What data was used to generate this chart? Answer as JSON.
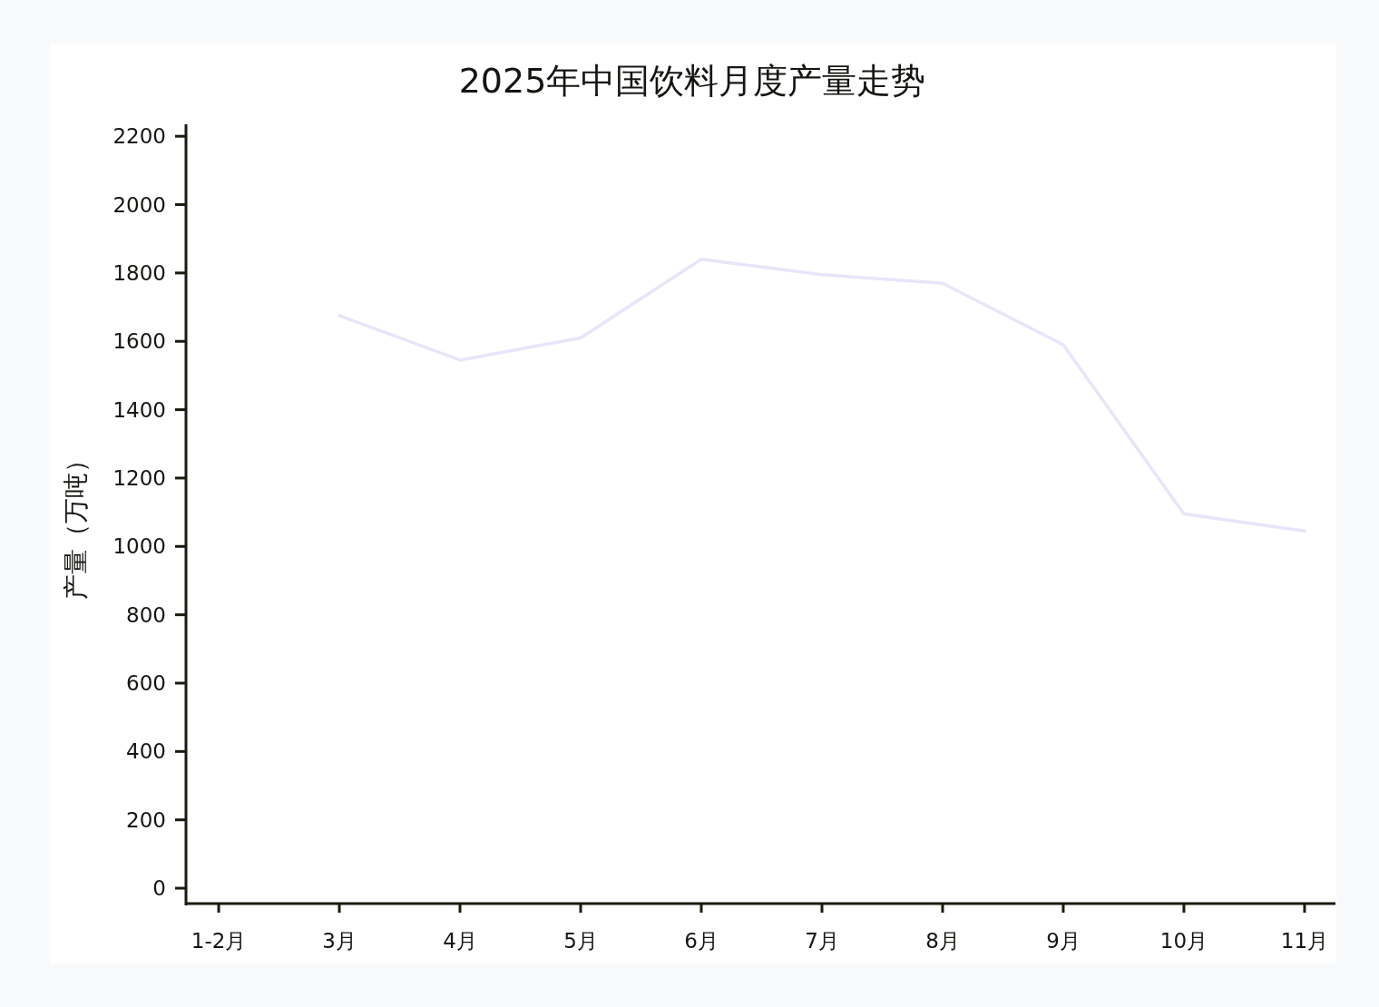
{
  "chart_data": {
    "type": "line",
    "title": "2025年中国饮料月度产量走势",
    "ylabel": "产量（万吨）",
    "categories": [
      "1-2月",
      "3月",
      "4月",
      "5月",
      "6月",
      "7月",
      "8月",
      "9月",
      "10月",
      "11月"
    ],
    "series": [
      {
        "color": "#e6e6fa",
        "values": [
          null,
          1675,
          1545,
          1610,
          1840,
          1795,
          1770,
          1590,
          1095,
          1045
        ]
      }
    ],
    "ylim": [
      -45,
      2235
    ],
    "yticks": [
      0,
      200,
      400,
      600,
      800,
      1000,
      1200,
      1400,
      1600,
      1800,
      2000,
      2200
    ],
    "line_style": "solid"
  }
}
